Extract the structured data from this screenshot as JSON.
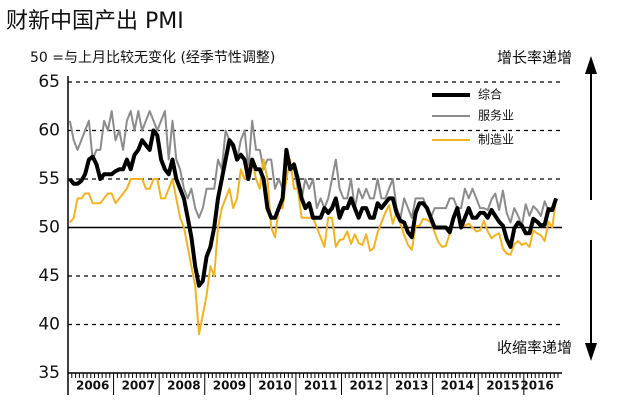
{
  "chart_data": {
    "type": "line",
    "title": "财新中国产出 PMI",
    "subtitle": "50 =与上月比较无变化 (经季节性调整)",
    "annotations": [
      "增长率递增",
      "收缩率递增"
    ],
    "categories": [
      null,
      null,
      null,
      null,
      null,
      null,
      "2006",
      null,
      null,
      null,
      null,
      null,
      null,
      null,
      null,
      null,
      null,
      null,
      "2007",
      null,
      null,
      null,
      null,
      null,
      null,
      null,
      null,
      null,
      null,
      null,
      "2008",
      null,
      null,
      null,
      null,
      null,
      null,
      null,
      null,
      null,
      null,
      null,
      "2009",
      null,
      null,
      null,
      null,
      null,
      null,
      null,
      null,
      null,
      null,
      null,
      "2010",
      null,
      null,
      null,
      null,
      null,
      null,
      null,
      null,
      null,
      null,
      null,
      "2011",
      null,
      null,
      null,
      null,
      null,
      null,
      null,
      null,
      null,
      null,
      null,
      "2012",
      null,
      null,
      null,
      null,
      null,
      null,
      null,
      null,
      null,
      null,
      null,
      "2013",
      null,
      null,
      null,
      null,
      null,
      null,
      null,
      null,
      null,
      null,
      null,
      "2014",
      null,
      null,
      null,
      null,
      null,
      null,
      null,
      null,
      null,
      null,
      null,
      "2015",
      null,
      null,
      null,
      null,
      null,
      null,
      null,
      null,
      "2016",
      null,
      null,
      null,
      null,
      null
    ],
    "series": [
      {
        "name": "服务业",
        "color": "#8c8c8c",
        "width": 2,
        "values": [
          61,
          59,
          58,
          59,
          60,
          61,
          57,
          58,
          58,
          61,
          60,
          62,
          59,
          60,
          58,
          61,
          62,
          60,
          62,
          60,
          61,
          62,
          61,
          60,
          61,
          62,
          57,
          61,
          57,
          56,
          54,
          53,
          54,
          52,
          51,
          52,
          54,
          54,
          54,
          57,
          56,
          60,
          59,
          58,
          57,
          59,
          60,
          56,
          61,
          58,
          58,
          56,
          57,
          57,
          54,
          55,
          54,
          58,
          56,
          56,
          54,
          53,
          55,
          54,
          55,
          52,
          53,
          52,
          53,
          55,
          57,
          54,
          53,
          53,
          55,
          52,
          54,
          53,
          54,
          53,
          53,
          55,
          53,
          53,
          54,
          55,
          52,
          51,
          53,
          52,
          51,
          53,
          53,
          53,
          52,
          51,
          52,
          52,
          52,
          52,
          53,
          53,
          52,
          52,
          54,
          53,
          54,
          53,
          52,
          52,
          51.8,
          52.9,
          53.5,
          51.8,
          53.8,
          51.5,
          50.5,
          52,
          51.2,
          50.2,
          52.4,
          51.2,
          52.2,
          51.8,
          51.2,
          52.7,
          51.7,
          52.1,
          53
        ]
      },
      {
        "name": "制造业",
        "color": "#f0b323",
        "width": 2,
        "values": [
          50.5,
          51,
          53,
          53,
          53.5,
          53.5,
          52.5,
          52.5,
          52.5,
          53,
          53.5,
          53.5,
          52.5,
          53,
          53.5,
          54,
          55,
          55,
          55,
          55,
          54,
          54,
          55,
          55,
          53,
          53,
          54,
          55,
          53,
          51,
          50,
          48,
          46,
          44,
          39,
          41,
          43,
          46,
          45,
          50,
          52,
          53,
          54,
          52,
          53,
          56,
          55,
          56,
          57,
          55,
          54,
          57,
          55,
          50,
          49,
          52,
          52,
          55,
          57,
          54,
          54,
          51,
          51,
          51,
          51,
          50,
          49,
          48,
          51,
          51,
          48,
          48.7,
          48.8,
          49.6,
          48.3,
          49.3,
          48.4,
          48.2,
          49.3,
          47.6,
          47.9,
          49.5,
          50.5,
          51.5,
          52.3,
          50.4,
          51.6,
          50.4,
          49.2,
          48.2,
          47.7,
          50.1,
          50.2,
          50.9,
          50.8,
          50.5,
          49.5,
          48.5,
          48,
          48.1,
          49.4,
          50.7,
          51.7,
          50.2,
          50.2,
          50.4,
          50,
          49.6,
          49.7,
          50.7,
          49.6,
          48.9,
          49.2,
          49.4,
          47.8,
          47.3,
          47.2,
          48.3,
          48.6,
          48.2,
          48.4,
          48,
          49.7,
          49.4,
          49.2,
          48.6,
          50.6,
          50,
          53
        ]
      },
      {
        "name": "综合",
        "color": "#000000",
        "width": 4,
        "values": [
          55,
          54.5,
          54.5,
          54.8,
          55.5,
          57,
          57.3,
          56.5,
          55,
          55.5,
          55.5,
          55.5,
          55.8,
          56,
          56,
          57,
          56,
          57.5,
          58,
          59,
          58.5,
          58,
          60,
          59.5,
          57,
          56,
          55.5,
          57,
          55,
          54,
          53,
          51,
          49,
          46,
          44,
          44.5,
          47,
          48,
          50,
          53,
          55,
          57,
          59,
          58.5,
          57,
          57.5,
          57,
          55,
          57,
          56,
          56,
          55,
          52,
          51,
          51,
          52,
          53,
          58,
          56,
          56.5,
          55,
          53,
          52,
          52.5,
          51,
          51,
          51,
          52,
          51.5,
          52,
          53,
          51,
          52,
          52,
          53,
          52,
          51,
          52,
          52,
          51,
          51,
          52.5,
          52,
          52.5,
          53,
          53,
          51.5,
          50.7,
          50.5,
          49.5,
          49,
          51.5,
          52.5,
          52.5,
          52,
          51,
          50,
          50,
          50,
          50,
          49.5,
          51,
          52,
          50,
          51,
          52,
          51,
          51,
          51.5,
          51.5,
          51,
          51.8,
          51.2,
          50.6,
          50.2,
          48.8,
          48,
          49.9,
          50.5,
          50.2,
          49.4,
          49.4,
          50.9,
          50.6,
          50.2,
          50.3,
          51.9,
          51.8,
          53
        ]
      }
    ],
    "ylim": [
      35,
      65
    ],
    "yticks": [
      35,
      40,
      45,
      50,
      55,
      60,
      65
    ],
    "grid": true,
    "hline": 50
  }
}
